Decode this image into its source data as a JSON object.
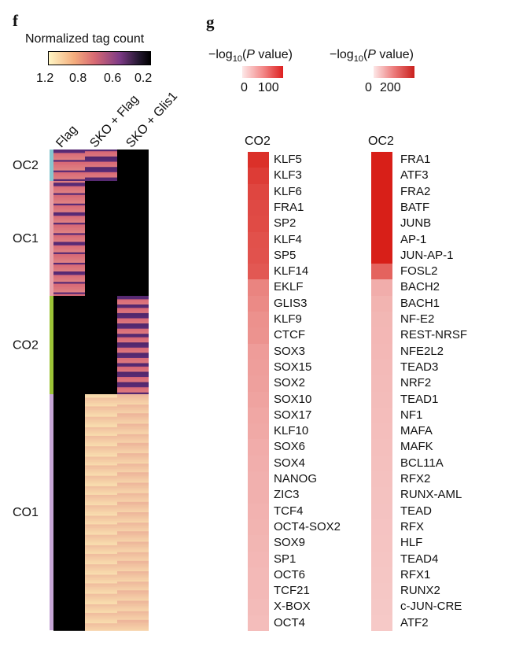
{
  "chart_data": [
    {
      "type": "heatmap",
      "panel": "f",
      "legend": {
        "title": "Normalized tag count",
        "ticks": [
          "1.2",
          "0.8",
          "0.6",
          "0.2"
        ]
      },
      "columns": [
        "Flag",
        "SKO + Flag",
        "SKO + Glis1"
      ],
      "row_groups": [
        {
          "label": "OC2",
          "fraction": 0.065,
          "color": "#86c7cf",
          "values": [
            0.78,
            0.75,
            0.2
          ]
        },
        {
          "label": "OC1",
          "fraction": 0.2395,
          "color": "#e7a0a8",
          "values": [
            0.78,
            0.2,
            0.2
          ]
        },
        {
          "label": "CO2",
          "fraction": 0.2045,
          "color": "#9cc437",
          "values": [
            0.2,
            0.2,
            0.75
          ]
        },
        {
          "label": "CO1",
          "fraction": 0.491,
          "color": "#c6a6d6",
          "values": [
            0.2,
            1.08,
            1.05
          ]
        }
      ]
    },
    {
      "type": "heatmap",
      "panel": "g",
      "legends": [
        {
          "title_prefix": "−log",
          "title_sub": "10",
          "title_open": "(",
          "title_italic": "P",
          "title_suffix": " value)",
          "ticks": [
            "0",
            "100"
          ]
        },
        {
          "title_prefix": "−log",
          "title_sub": "10",
          "title_open": "(",
          "title_italic": "P",
          "title_suffix": " value)",
          "ticks": [
            "0",
            "200"
          ]
        }
      ],
      "series": [
        {
          "name": "CO2",
          "motifs": [
            "KLF5",
            "KLF3",
            "KLF6",
            "FRA1",
            "SP2",
            "KLF4",
            "SP5",
            "KLF14",
            "EKLF",
            "GLIS3",
            "KLF9",
            "CTCF",
            "SOX3",
            "SOX15",
            "SOX2",
            "SOX10",
            "SOX17",
            "KLF10",
            "SOX6",
            "SOX4",
            "NANOG",
            "ZIC3",
            "TCF4",
            "OCT4-SOX2",
            "SOX9",
            "SP1",
            "OCT6",
            "TCF21",
            "X-BOX",
            "OCT4"
          ],
          "values": [
            91,
            84,
            79,
            77,
            76,
            73,
            72,
            69,
            45,
            42,
            38,
            37,
            32,
            31,
            30,
            28,
            26,
            25,
            23,
            22,
            21,
            21,
            20,
            19,
            18,
            17,
            16,
            16,
            15,
            14
          ]
        },
        {
          "name": "OC2",
          "motifs": [
            "FRA1",
            "ATF3",
            "FRA2",
            "BATF",
            "JUNB",
            "AP-1",
            "JUN-AP-1",
            "FOSL2",
            "BACH2",
            "BACH1",
            "NF-E2",
            "REST-NRSF",
            "NFE2L2",
            "TEAD3",
            "NRF2",
            "TEAD1",
            "NF1",
            "MAFA",
            "MAFK",
            "BCL11A",
            "RFX2",
            "RUNX-AML",
            "TEAD",
            "RFX",
            "HLF",
            "TEAD4",
            "RFX1",
            "RUNX2",
            "c-JUN-CRE",
            "ATF2"
          ],
          "values": [
            200,
            200,
            200,
            200,
            200,
            200,
            200,
            126,
            45,
            38,
            35,
            34,
            33,
            31,
            30,
            29,
            28,
            27,
            26,
            25,
            24,
            23,
            22,
            21,
            20,
            19,
            18,
            17,
            16,
            15
          ]
        }
      ]
    }
  ],
  "panel_labels": {
    "f": "f",
    "g": "g"
  },
  "colors": {
    "heatmap_low": "#000000",
    "heatmap_mid": "#5a2b76",
    "heatmap_high": "#fff3b8",
    "motif_low": "#ffffff",
    "motif_high": "#d81f18"
  }
}
